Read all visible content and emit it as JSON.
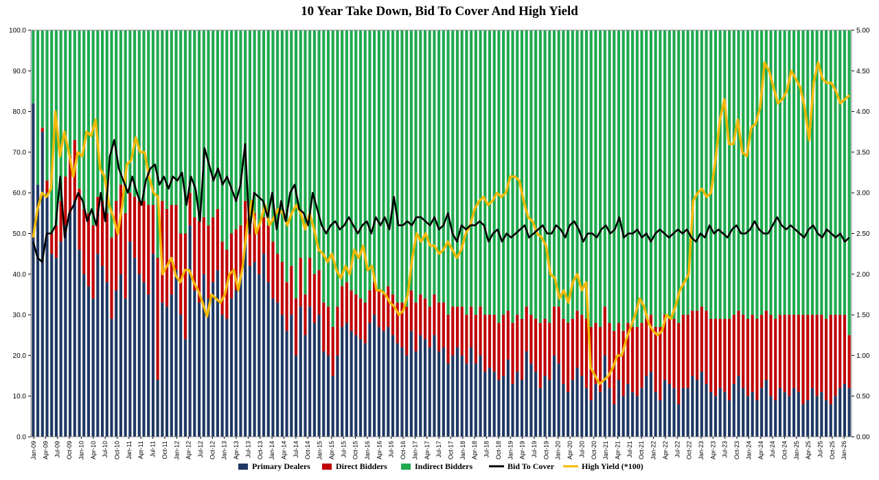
{
  "chart_data": {
    "type": "bar",
    "title": "10 Year Take Down, Bid To Cover And High Yield",
    "stacked": true,
    "x_tick_labels": [
      "Jan-09",
      "Apr-09",
      "Jul-09",
      "Oct-09",
      "Jan-10",
      "Apr-10",
      "Jul-10",
      "Oct-10",
      "Jan-11",
      "Apr-11",
      "Jul-11",
      "Oct-11",
      "Jan-12",
      "Apr-12",
      "Jul-12",
      "Oct-12",
      "Jan-13",
      "Apr-13",
      "Jul-13",
      "Oct-13",
      "Jan-14",
      "Apr-14",
      "Jul-14",
      "Oct-14",
      "Jan-15",
      "Apr-15",
      "Jul-15",
      "Oct-15",
      "Jan-16",
      "Apr-16",
      "Jul-16",
      "Oct-16",
      "Jan-17",
      "Apr-17",
      "Jul-17",
      "Oct-17",
      "Jan-18",
      "Apr-18",
      "Jul-18",
      "Oct-18",
      "Jan-19",
      "Apr-19",
      "Jul-19",
      "Oct-19",
      "Jan-20",
      "Apr-20",
      "Jul-20",
      "Oct-20",
      "Jan-21",
      "Apr-21",
      "Jul-21",
      "Oct-21",
      "Jan-22",
      "Apr-22",
      "Jul-22",
      "Oct-22",
      "Jan-23",
      "Apr-23",
      "Jul-23",
      "Oct-23",
      "Jan-24",
      "Apr-24",
      "Jul-24",
      "Oct-24",
      "Jan-25",
      "Apr-25",
      "Jul-25",
      "Oct-25",
      "Jan-26"
    ],
    "left_axis": {
      "ylim": [
        0,
        100
      ],
      "ticks": [
        "0.0",
        "10.0",
        "20.0",
        "30.0",
        "40.0",
        "50.0",
        "60.0",
        "70.0",
        "80.0",
        "90.0",
        "100.0"
      ]
    },
    "right_axis": {
      "ylim": [
        0,
        5
      ],
      "ticks": [
        "0.00",
        "0.50",
        "1.00",
        "1.50",
        "2.00",
        "2.50",
        "3.00",
        "3.50",
        "4.00",
        "4.50",
        "5.00"
      ]
    },
    "legend": [
      "Primary Dealers",
      "Direct Bidders",
      "Indirect Bidders",
      "Bid To Cover",
      "High Yield (*100)"
    ],
    "legend_position": "bottom",
    "colors": {
      "primary_dealers": "#1f3864",
      "direct_bidders": "#c00000",
      "indirect_bidders": "#1faa4f",
      "bid_to_cover": "#000000",
      "high_yield": "#f5b800"
    },
    "series": [
      {
        "name": "Primary Dealers",
        "kind": "bar",
        "axis": "left",
        "values": [
          82,
          62,
          75,
          60,
          45,
          44,
          48,
          52,
          55,
          58,
          46,
          40,
          37,
          34,
          45,
          42,
          38,
          29,
          36,
          40,
          34,
          48,
          44,
          40,
          38,
          35,
          45,
          14,
          33,
          32,
          35,
          41,
          30,
          24,
          52,
          36,
          33,
          40,
          34,
          38,
          41,
          30,
          29,
          34,
          36,
          40,
          48,
          42,
          43,
          40,
          45,
          38,
          34,
          33,
          30,
          26,
          30,
          20,
          32,
          25,
          32,
          28,
          30,
          21,
          20,
          15,
          20,
          27,
          28,
          26,
          25,
          24,
          23,
          28,
          30,
          27,
          26,
          27,
          25,
          23,
          22,
          20,
          26,
          21,
          25,
          24,
          22,
          25,
          21,
          22,
          18,
          20,
          22,
          20,
          18,
          22,
          18,
          20,
          16,
          17,
          16,
          14,
          15,
          19,
          13,
          16,
          14,
          21,
          18,
          16,
          12,
          15,
          14,
          20,
          18,
          13,
          11,
          14,
          17,
          15,
          12,
          9,
          13,
          11,
          20,
          12,
          8,
          14,
          10,
          13,
          11,
          10,
          12,
          15,
          16,
          11,
          9,
          14,
          13,
          12,
          8,
          12,
          12,
          15,
          14,
          16,
          13,
          11,
          10,
          12,
          11,
          9,
          13,
          15,
          12,
          10,
          11,
          9,
          12,
          14,
          10,
          9,
          12,
          11,
          10,
          12,
          11,
          8,
          9,
          12,
          10,
          11,
          9,
          8,
          10,
          12,
          13,
          12
        ],
        "overlay_values": [
          82,
          60,
          76,
          58,
          48,
          47,
          48,
          50,
          53,
          57,
          54,
          50,
          52,
          46,
          47,
          46,
          41,
          36,
          35,
          37,
          36,
          40,
          41,
          37,
          33,
          33,
          31,
          33,
          33,
          32,
          33,
          31,
          30,
          29,
          30,
          31,
          29,
          31,
          30,
          28,
          29,
          29,
          28,
          26,
          29,
          28,
          27,
          26,
          27,
          27,
          25,
          24,
          24,
          24,
          24,
          25,
          25,
          24,
          23,
          23,
          22,
          21,
          22,
          21,
          21,
          20,
          21,
          20,
          20,
          20,
          20,
          19,
          19,
          19,
          19,
          19,
          18,
          18,
          18,
          18,
          18,
          18,
          18,
          18,
          17,
          17,
          16,
          16,
          16,
          16,
          16,
          16,
          16,
          16,
          15,
          15,
          15,
          15,
          15,
          15,
          15,
          14,
          14,
          14,
          14,
          14,
          14,
          14,
          14,
          13,
          13,
          13,
          13,
          13,
          13,
          13,
          13,
          13,
          12,
          12,
          12,
          12,
          12,
          12,
          12,
          12,
          12,
          12,
          12,
          12,
          12,
          12,
          12,
          12,
          12,
          12,
          12,
          12,
          12,
          12,
          12,
          12,
          12,
          12,
          12,
          12,
          12,
          12,
          12,
          12,
          12,
          12,
          12,
          12,
          12,
          12,
          12,
          12,
          12,
          12,
          12,
          12,
          12,
          12,
          12,
          12,
          12,
          12,
          12,
          12,
          12,
          12,
          12,
          12,
          12,
          12,
          12,
          12,
          12,
          12,
          12,
          12,
          12,
          12
        ]
      },
      {
        "name": "Direct Bidders",
        "kind": "bar",
        "axis": "left",
        "values": [
          0,
          0,
          1,
          3,
          5,
          8,
          10,
          12,
          14,
          15,
          15,
          16,
          18,
          18,
          14,
          16,
          17,
          20,
          22,
          22,
          21,
          12,
          15,
          18,
          20,
          22,
          12,
          30,
          25,
          24,
          22,
          16,
          20,
          26,
          8,
          18,
          20,
          14,
          18,
          16,
          15,
          18,
          17,
          16,
          15,
          12,
          10,
          10,
          12,
          12,
          9,
          14,
          14,
          12,
          13,
          12,
          12,
          14,
          12,
          10,
          12,
          12,
          11,
          12,
          12,
          12,
          12,
          10,
          10,
          10,
          10,
          10,
          10,
          8,
          8,
          9,
          9,
          10,
          10,
          10,
          11,
          12,
          10,
          12,
          10,
          10,
          10,
          10,
          12,
          11,
          12,
          12,
          10,
          12,
          12,
          10,
          12,
          12,
          14,
          13,
          14,
          14,
          15,
          12,
          15,
          14,
          15,
          11,
          12,
          13,
          16,
          14,
          14,
          12,
          14,
          16,
          17,
          15,
          14,
          15,
          17,
          18,
          15,
          16,
          12,
          16,
          18,
          14,
          16,
          15,
          16,
          17,
          16,
          14,
          14,
          16,
          18,
          16,
          16,
          17,
          20,
          18,
          18,
          16,
          17,
          16,
          18,
          18,
          19,
          17,
          18,
          20,
          17,
          16,
          18,
          19,
          19,
          20,
          18,
          17,
          20,
          20,
          18,
          19,
          20,
          18,
          19,
          22,
          21,
          18,
          20,
          19,
          20,
          22,
          20,
          18,
          17,
          13
        ]
      },
      {
        "name": "Bid To Cover",
        "kind": "line",
        "axis": "right",
        "values": [
          2.4,
          2.2,
          2.15,
          2.5,
          2.5,
          2.6,
          3.2,
          2.45,
          2.75,
          2.85,
          3.0,
          2.9,
          2.65,
          2.8,
          2.6,
          3.0,
          2.65,
          3.45,
          3.65,
          3.3,
          3.15,
          3.0,
          3.2,
          3.0,
          2.85,
          3.15,
          3.3,
          3.35,
          3.1,
          3.2,
          3.05,
          3.2,
          3.15,
          3.25,
          2.85,
          3.2,
          3.05,
          2.65,
          3.55,
          3.35,
          3.15,
          3.3,
          3.1,
          3.2,
          3.05,
          2.9,
          3.1,
          3.6,
          2.5,
          3.0,
          2.95,
          2.9,
          2.7,
          3.0,
          2.55,
          2.9,
          2.65,
          3.0,
          3.1,
          2.8,
          2.75,
          2.6,
          3.0,
          2.8,
          2.6,
          2.5,
          2.6,
          2.65,
          2.55,
          2.6,
          2.7,
          2.6,
          2.5,
          2.6,
          2.65,
          2.5,
          2.7,
          2.6,
          2.7,
          2.55,
          2.95,
          2.6,
          2.6,
          2.65,
          2.6,
          2.7,
          2.7,
          2.65,
          2.6,
          2.7,
          2.55,
          2.6,
          2.75,
          2.5,
          2.4,
          2.6,
          2.55,
          2.6,
          2.6,
          2.65,
          2.6,
          2.4,
          2.5,
          2.55,
          2.4,
          2.5,
          2.45,
          2.5,
          2.55,
          2.6,
          2.45,
          2.5,
          2.55,
          2.6,
          2.5,
          2.5,
          2.6,
          2.55,
          2.45,
          2.6,
          2.65,
          2.55,
          2.4,
          2.5,
          2.5,
          2.45,
          2.55,
          2.6,
          2.5,
          2.55,
          2.7,
          2.45,
          2.5,
          2.5,
          2.55,
          2.45,
          2.5,
          2.4,
          2.5,
          2.55,
          2.5,
          2.45,
          2.5,
          2.55,
          2.5,
          2.55,
          2.45,
          2.4,
          2.5,
          2.45,
          2.6,
          2.5,
          2.55,
          2.5,
          2.45,
          2.55,
          2.6,
          2.5,
          2.5,
          2.55,
          2.65,
          2.55,
          2.5,
          2.5,
          2.6,
          2.7,
          2.6,
          2.55,
          2.6,
          2.55,
          2.5,
          2.45,
          2.55,
          2.6,
          2.5,
          2.45,
          2.55,
          2.5,
          2.45,
          2.5,
          2.4,
          2.45
        ]
      },
      {
        "name": "High Yield (*100)",
        "kind": "line",
        "axis": "right",
        "values": [
          2.45,
          2.8,
          3.0,
          2.95,
          3.05,
          4.0,
          3.45,
          3.75,
          3.5,
          3.2,
          3.5,
          3.45,
          3.75,
          3.7,
          3.9,
          3.3,
          3.2,
          2.85,
          2.7,
          2.5,
          2.85,
          3.35,
          3.4,
          3.68,
          3.5,
          3.5,
          3.2,
          3.0,
          2.95,
          2.0,
          2.1,
          2.2,
          1.98,
          1.9,
          2.05,
          2.05,
          1.9,
          1.8,
          1.65,
          1.48,
          1.75,
          1.7,
          1.65,
          1.75,
          2.0,
          2.05,
          1.8,
          2.1,
          2.6,
          2.9,
          2.5,
          2.65,
          2.85,
          2.6,
          2.7,
          2.8,
          2.75,
          2.6,
          2.75,
          2.85,
          2.75,
          2.55,
          2.75,
          2.55,
          2.3,
          2.25,
          2.15,
          2.25,
          2.05,
          1.95,
          2.1,
          2.0,
          2.3,
          2.2,
          2.35,
          2.05,
          2.1,
          1.8,
          1.8,
          1.75,
          1.65,
          1.6,
          1.5,
          1.55,
          1.75,
          2.2,
          2.5,
          2.4,
          2.5,
          2.35,
          2.35,
          2.25,
          2.3,
          2.4,
          2.3,
          2.2,
          2.3,
          2.5,
          2.6,
          2.8,
          2.9,
          2.95,
          2.85,
          2.9,
          3.0,
          2.95,
          3.0,
          3.2,
          3.2,
          3.15,
          2.9,
          2.7,
          2.65,
          2.5,
          2.45,
          2.35,
          2.0,
          1.95,
          1.7,
          1.8,
          1.65,
          1.9,
          2.0,
          1.8,
          1.9,
          0.85,
          0.75,
          0.65,
          0.7,
          0.75,
          0.85,
          1.0,
          1.0,
          1.2,
          1.35,
          1.5,
          1.7,
          1.6,
          1.4,
          1.3,
          1.25,
          1.3,
          1.5,
          1.45,
          1.6,
          1.8,
          1.9,
          2.0,
          2.9,
          3.0,
          3.05,
          2.95,
          3.0,
          3.4,
          3.9,
          4.15,
          3.6,
          3.6,
          3.9,
          3.5,
          3.45,
          3.8,
          3.85,
          4.05,
          4.6,
          4.5,
          4.3,
          4.1,
          4.15,
          4.25,
          4.5,
          4.4,
          4.3,
          4.05,
          3.65,
          4.35,
          4.6,
          4.4,
          4.35,
          4.35,
          4.25,
          4.1,
          4.15,
          4.2
        ]
      }
    ]
  }
}
